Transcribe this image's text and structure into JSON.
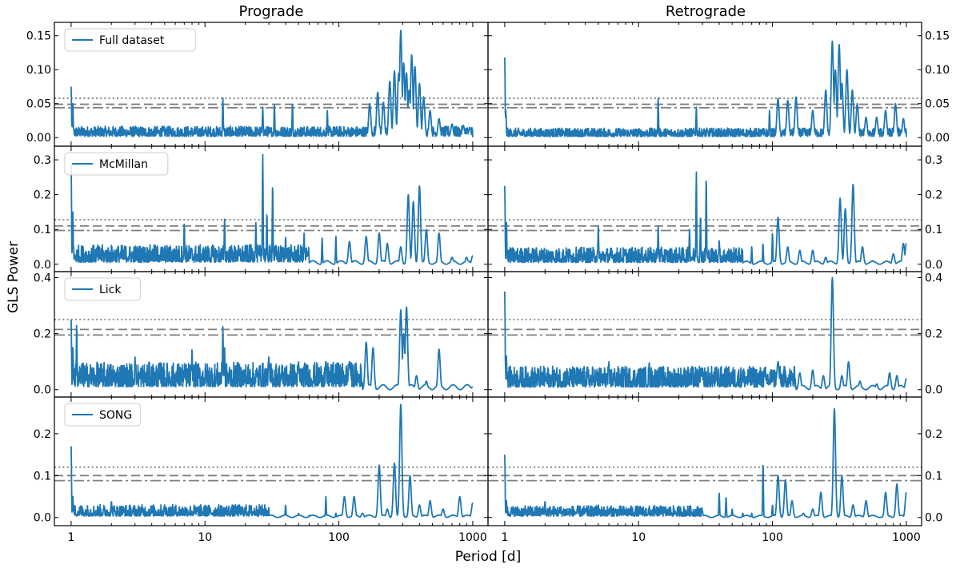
{
  "chart_data": {
    "type": "line",
    "layout": "4x2 grid of periodogram panels, shared log x-axis",
    "column_titles": [
      "Prograde",
      "Retrograde"
    ],
    "xlabel": "Period [d]",
    "ylabel": "GLS Power",
    "x_scale": "log",
    "xlim": [
      0.75,
      1300
    ],
    "x_ticks": [
      1,
      10,
      100,
      1000
    ],
    "x_tick_labels": [
      "1",
      "10",
      "100",
      "1000"
    ],
    "series_color": "#1f77b4",
    "threshold_color": "#7f7f7f",
    "panels_rows": [
      {
        "legend": "Full dataset",
        "ylim": [
          -0.008,
          0.165
        ],
        "y_ticks": [
          0.0,
          0.05,
          0.1,
          0.15
        ],
        "y_tick_labels": [
          "0.00",
          "0.05",
          "0.10",
          "0.15"
        ],
        "thresholds": {
          "dotted": 0.058,
          "dashed": 0.049,
          "dashdot": 0.044
        },
        "panels": [
          {
            "name": "prograde",
            "noise_level": 0.012,
            "tail_start": 1000,
            "peaks": [
              [
                1.0,
                0.075
              ],
              [
                1.03,
                0.05
              ],
              [
                13.6,
                0.058
              ],
              [
                27,
                0.045
              ],
              [
                33,
                0.05
              ],
              [
                45,
                0.052
              ],
              [
                82,
                0.04
              ],
              [
                170,
                0.05
              ],
              [
                195,
                0.067
              ],
              [
                215,
                0.052
              ],
              [
                240,
                0.083
              ],
              [
                260,
                0.098
              ],
              [
                280,
                0.095
              ],
              [
                290,
                0.158
              ],
              [
                305,
                0.11
              ],
              [
                320,
                0.095
              ],
              [
                335,
                0.07
              ],
              [
                350,
                0.122
              ],
              [
                370,
                0.105
              ],
              [
                400,
                0.08
              ],
              [
                430,
                0.06
              ],
              [
                480,
                0.04
              ],
              [
                560,
                0.028
              ],
              [
                700,
                0.02
              ],
              [
                850,
                0.018
              ],
              [
                950,
                0.015
              ]
            ]
          },
          {
            "name": "retrograde",
            "noise_level": 0.01,
            "tail_start": 1000,
            "peaks": [
              [
                1.0,
                0.118
              ],
              [
                1.02,
                0.04
              ],
              [
                14,
                0.058
              ],
              [
                27,
                0.045
              ],
              [
                95,
                0.04
              ],
              [
                110,
                0.058
              ],
              [
                130,
                0.055
              ],
              [
                150,
                0.06
              ],
              [
                200,
                0.04
              ],
              [
                250,
                0.07
              ],
              [
                280,
                0.142
              ],
              [
                295,
                0.1
              ],
              [
                315,
                0.137
              ],
              [
                330,
                0.08
              ],
              [
                360,
                0.1
              ],
              [
                395,
                0.07
              ],
              [
                430,
                0.05
              ],
              [
                500,
                0.03
              ],
              [
                600,
                0.03
              ],
              [
                700,
                0.04
              ],
              [
                830,
                0.05
              ],
              [
                950,
                0.028
              ]
            ]
          }
        ]
      },
      {
        "legend": "McMillan",
        "ylim": [
          -0.012,
          0.33
        ],
        "y_ticks": [
          0.0,
          0.1,
          0.2,
          0.3
        ],
        "y_tick_labels": [
          "0.0",
          "0.1",
          "0.2",
          "0.3"
        ],
        "thresholds": {
          "dotted": 0.128,
          "dashed": 0.11,
          "dashdot": 0.097
        },
        "panels": [
          {
            "name": "prograde",
            "noise_level": 0.04,
            "tail_start": 60,
            "peaks": [
              [
                1.0,
                0.29
              ],
              [
                1.03,
                0.15
              ],
              [
                7,
                0.12
              ],
              [
                14,
                0.13
              ],
              [
                24,
                0.12
              ],
              [
                27,
                0.315
              ],
              [
                29,
                0.15
              ],
              [
                32,
                0.23
              ],
              [
                40,
                0.08
              ],
              [
                55,
                0.09
              ],
              [
                75,
                0.075
              ],
              [
                95,
                0.08
              ],
              [
                120,
                0.065
              ],
              [
                160,
                0.08
              ],
              [
                200,
                0.09
              ],
              [
                230,
                0.06
              ],
              [
                290,
                0.05
              ],
              [
                330,
                0.2
              ],
              [
                360,
                0.18
              ],
              [
                400,
                0.225
              ],
              [
                450,
                0.1
              ],
              [
                560,
                0.09
              ],
              [
                700,
                0.02
              ],
              [
                900,
                0.02
              ],
              [
                1000,
                0.025
              ]
            ]
          },
          {
            "name": "retrograde",
            "noise_level": 0.035,
            "tail_start": 60,
            "peaks": [
              [
                1.0,
                0.225
              ],
              [
                1.03,
                0.12
              ],
              [
                5,
                0.11
              ],
              [
                14,
                0.11
              ],
              [
                24,
                0.1
              ],
              [
                27,
                0.265
              ],
              [
                29,
                0.14
              ],
              [
                32,
                0.25
              ],
              [
                40,
                0.07
              ],
              [
                70,
                0.05
              ],
              [
                85,
                0.06
              ],
              [
                100,
                0.09
              ],
              [
                110,
                0.135
              ],
              [
                130,
                0.05
              ],
              [
                160,
                0.04
              ],
              [
                200,
                0.04
              ],
              [
                250,
                0.02
              ],
              [
                320,
                0.19
              ],
              [
                350,
                0.16
              ],
              [
                400,
                0.23
              ],
              [
                470,
                0.05
              ],
              [
                560,
                0.01
              ],
              [
                800,
                0.03
              ],
              [
                950,
                0.06
              ],
              [
                1000,
                0.06
              ]
            ]
          }
        ]
      },
      {
        "legend": "Lick",
        "ylim": [
          -0.015,
          0.41
        ],
        "y_ticks": [
          0.0,
          0.2,
          0.4
        ],
        "y_tick_labels": [
          "0.0",
          "0.2",
          "0.4"
        ],
        "thresholds": {
          "dotted": 0.25,
          "dashed": 0.215,
          "dashdot": 0.195
        },
        "panels": [
          {
            "name": "prograde",
            "noise_level": 0.07,
            "tail_start": 150,
            "peaks": [
              [
                1.0,
                0.25
              ],
              [
                1.03,
                0.15
              ],
              [
                1.1,
                0.235
              ],
              [
                3,
                0.12
              ],
              [
                8,
                0.15
              ],
              [
                13.6,
                0.225
              ],
              [
                14,
                0.15
              ],
              [
                30,
                0.12
              ],
              [
                50,
                0.1
              ],
              [
                80,
                0.1
              ],
              [
                120,
                0.1
              ],
              [
                160,
                0.17
              ],
              [
                180,
                0.15
              ],
              [
                290,
                0.285
              ],
              [
                305,
                0.2
              ],
              [
                320,
                0.295
              ],
              [
                380,
                0.05
              ],
              [
                450,
                0.03
              ],
              [
                560,
                0.145
              ],
              [
                700,
                0.01
              ],
              [
                1000,
                0.01
              ]
            ]
          },
          {
            "name": "retrograde",
            "noise_level": 0.06,
            "tail_start": 150,
            "peaks": [
              [
                1.0,
                0.35
              ],
              [
                1.03,
                0.12
              ],
              [
                6,
                0.1
              ],
              [
                12,
                0.1
              ],
              [
                30,
                0.08
              ],
              [
                60,
                0.07
              ],
              [
                100,
                0.07
              ],
              [
                110,
                0.1
              ],
              [
                160,
                0.06
              ],
              [
                200,
                0.07
              ],
              [
                240,
                0.05
              ],
              [
                280,
                0.4
              ],
              [
                330,
                0.05
              ],
              [
                370,
                0.1
              ],
              [
                450,
                0.03
              ],
              [
                600,
                0.02
              ],
              [
                750,
                0.06
              ],
              [
                850,
                0.05
              ],
              [
                1000,
                0.04
              ]
            ]
          }
        ]
      },
      {
        "legend": "SONG",
        "ylim": [
          -0.012,
          0.28
        ],
        "y_ticks": [
          0.0,
          0.1,
          0.2
        ],
        "y_tick_labels": [
          "0.0",
          "0.1",
          "0.2"
        ],
        "thresholds": {
          "dotted": 0.12,
          "dashed": 0.1,
          "dashdot": 0.088
        },
        "panels": [
          {
            "name": "prograde",
            "noise_level": 0.022,
            "tail_start": 30,
            "peaks": [
              [
                1.0,
                0.17
              ],
              [
                1.03,
                0.05
              ],
              [
                2,
                0.04
              ],
              [
                5,
                0.03
              ],
              [
                15,
                0.02
              ],
              [
                30,
                0.01
              ],
              [
                40,
                0.03
              ],
              [
                50,
                0.01
              ],
              [
                60,
                0.005
              ],
              [
                80,
                0.05
              ],
              [
                95,
                0.01
              ],
              [
                110,
                0.05
              ],
              [
                130,
                0.05
              ],
              [
                150,
                0.01
              ],
              [
                200,
                0.125
              ],
              [
                230,
                0.02
              ],
              [
                260,
                0.13
              ],
              [
                290,
                0.27
              ],
              [
                340,
                0.1
              ],
              [
                400,
                0.03
              ],
              [
                480,
                0.04
              ],
              [
                600,
                0.02
              ],
              [
                800,
                0.05
              ],
              [
                1000,
                0.035
              ]
            ]
          },
          {
            "name": "retrograde",
            "noise_level": 0.02,
            "tail_start": 30,
            "peaks": [
              [
                1.0,
                0.15
              ],
              [
                1.03,
                0.04
              ],
              [
                2,
                0.04
              ],
              [
                5,
                0.03
              ],
              [
                15,
                0.025
              ],
              [
                30,
                0.015
              ],
              [
                40,
                0.06
              ],
              [
                45,
                0.05
              ],
              [
                50,
                0.02
              ],
              [
                60,
                0.01
              ],
              [
                70,
                0.01
              ],
              [
                85,
                0.13
              ],
              [
                100,
                0.03
              ],
              [
                110,
                0.1
              ],
              [
                125,
                0.09
              ],
              [
                140,
                0.04
              ],
              [
                170,
                0.01
              ],
              [
                200,
                0.02
              ],
              [
                230,
                0.06
              ],
              [
                290,
                0.26
              ],
              [
                330,
                0.1
              ],
              [
                400,
                0.03
              ],
              [
                500,
                0.04
              ],
              [
                700,
                0.06
              ],
              [
                850,
                0.08
              ],
              [
                1000,
                0.06
              ]
            ]
          }
        ]
      }
    ]
  }
}
